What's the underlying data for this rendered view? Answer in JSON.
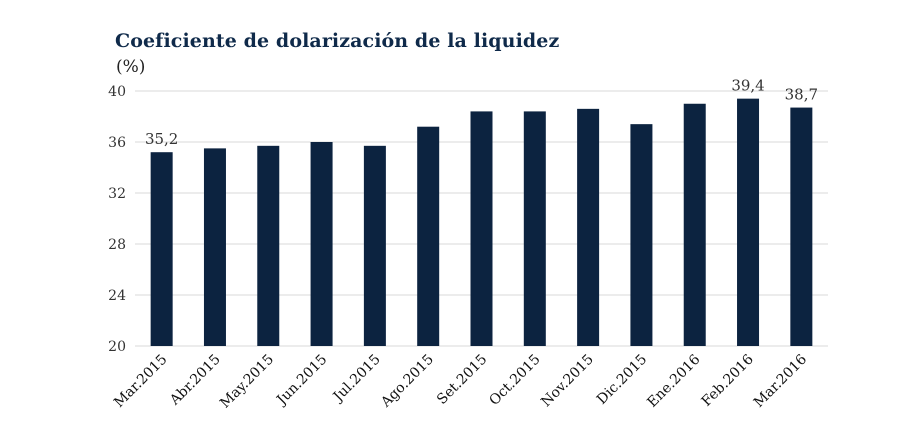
{
  "chart_data": {
    "type": "bar",
    "title": "Coeficiente de dolarización de la liquidez",
    "ylabel": "(%)",
    "xlabel": "",
    "categories": [
      "Mar.2015",
      "Abr.2015",
      "May.2015",
      "Jun.2015",
      "Jul.2015",
      "Ago.2015",
      "Set.2015",
      "Oct.2015",
      "Nov.2015",
      "Dic.2015",
      "Ene.2016",
      "Feb.2016",
      "Mar.2016"
    ],
    "values": [
      35.2,
      35.5,
      35.7,
      36.0,
      35.7,
      37.2,
      38.4,
      38.4,
      38.6,
      37.4,
      39.0,
      39.4,
      38.7
    ],
    "data_labels": [
      "35,2",
      null,
      null,
      null,
      null,
      null,
      null,
      null,
      null,
      null,
      null,
      "39,4",
      "38,7"
    ],
    "ylim": [
      20,
      40
    ],
    "yticks": [
      "20",
      "24",
      "28",
      "32",
      "36",
      "40"
    ],
    "grid": true,
    "bar_color": "#0c2340",
    "grid_color": "#d9d9d9",
    "legend": "none"
  }
}
